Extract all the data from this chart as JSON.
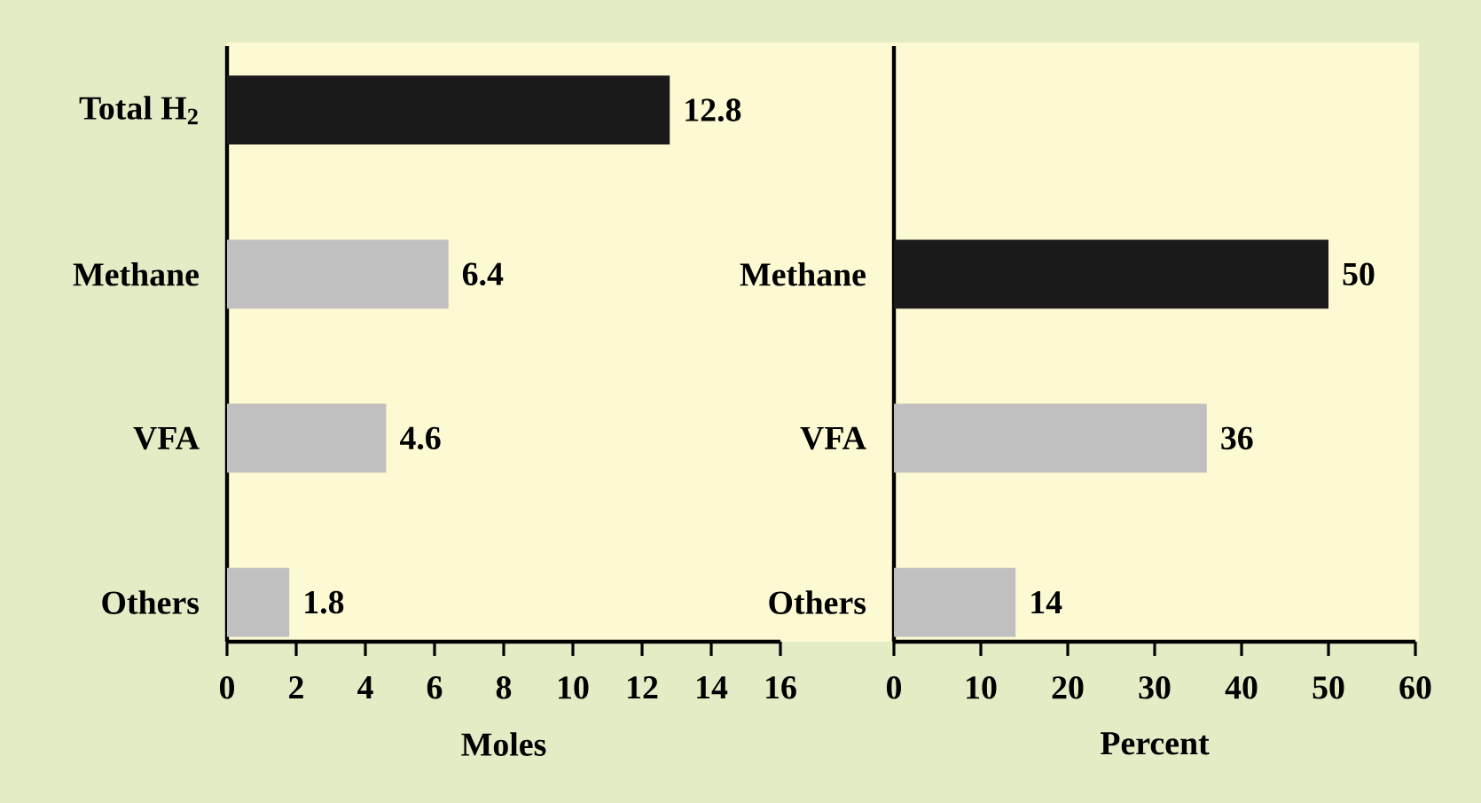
{
  "chart_data": [
    {
      "type": "bar",
      "orientation": "horizontal",
      "categories": [
        "Total H$_{2}$",
        "Methane",
        "VFA",
        "Others"
      ],
      "values": [
        12.8,
        6.4,
        4.6,
        1.8
      ],
      "colors": [
        "#1a1a1a",
        "#c0c0c0",
        "#c0c0c0",
        "#c0c0c0"
      ],
      "xlim": [
        0,
        16
      ],
      "xticks": [
        0,
        2,
        4,
        6,
        8,
        10,
        12,
        14,
        16
      ],
      "xlabel": "Moles",
      "data_labels": true
    },
    {
      "type": "bar",
      "orientation": "horizontal",
      "categories": [
        null,
        "Methane",
        "VFA",
        "Others"
      ],
      "values": [
        null,
        50,
        36,
        14
      ],
      "colors": [
        "#1a1a1a",
        "#1a1a1a",
        "#c0c0c0",
        "#c0c0c0"
      ],
      "xlim": [
        0,
        60
      ],
      "xticks": [
        0,
        10,
        20,
        30,
        40,
        50,
        60
      ],
      "xlabel": "Percent",
      "data_labels": true
    }
  ]
}
